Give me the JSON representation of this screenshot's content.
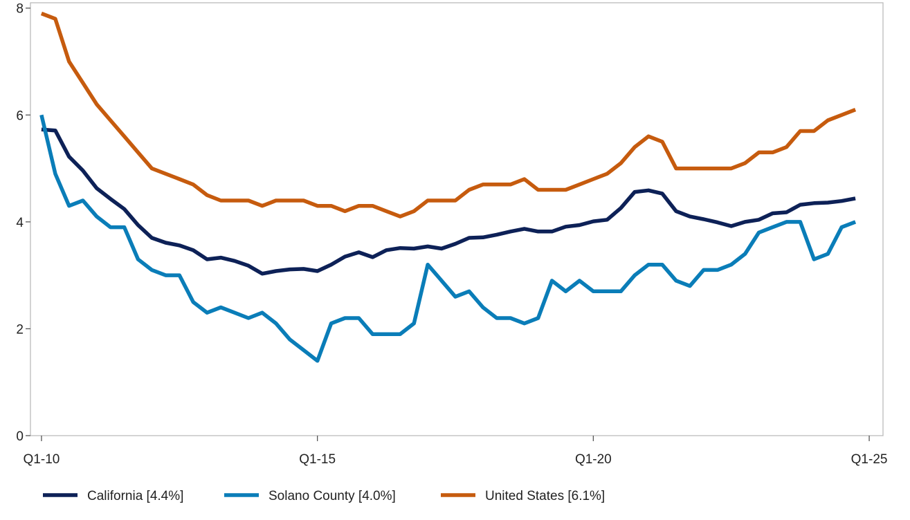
{
  "chart_data": {
    "type": "line",
    "title": "",
    "xlabel": "",
    "ylabel": "",
    "x_tick_labels": [
      "Q1-10",
      "Q1-15",
      "Q1-20",
      "Q1-25"
    ],
    "x_tick_positions": [
      0,
      20,
      40,
      60
    ],
    "y_ticks": [
      0,
      2,
      4,
      6,
      8
    ],
    "ylim": [
      0,
      8.1
    ],
    "xlim": [
      -0.8,
      61
    ],
    "grid": false,
    "legend_position": "bottom",
    "series": [
      {
        "name": "California [4.4%]",
        "color": "#0d2157",
        "values": [
          5.73,
          5.71,
          5.22,
          4.96,
          4.63,
          4.43,
          4.24,
          3.94,
          3.7,
          3.61,
          3.56,
          3.47,
          3.3,
          3.33,
          3.27,
          3.18,
          3.03,
          3.08,
          3.11,
          3.12,
          3.08,
          3.2,
          3.35,
          3.43,
          3.34,
          3.47,
          3.51,
          3.5,
          3.54,
          3.5,
          3.59,
          3.7,
          3.71,
          3.76,
          3.82,
          3.87,
          3.82,
          3.82,
          3.91,
          3.94,
          4.01,
          4.04,
          4.26,
          4.56,
          4.59,
          4.53,
          4.2,
          4.1,
          4.05,
          3.99,
          3.92,
          4.0,
          4.04,
          4.16,
          4.18,
          4.32,
          4.35,
          4.36,
          4.39,
          4.44
        ]
      },
      {
        "name": "Solano County [4.0%]",
        "color": "#0a7db8",
        "values": [
          6.0,
          4.9,
          4.3,
          4.4,
          4.1,
          3.9,
          3.9,
          3.3,
          3.1,
          3.0,
          3.0,
          2.5,
          2.3,
          2.4,
          2.3,
          2.2,
          2.3,
          2.1,
          1.8,
          1.6,
          1.4,
          2.1,
          2.2,
          2.2,
          1.9,
          1.9,
          1.9,
          2.1,
          3.2,
          2.9,
          2.6,
          2.7,
          2.4,
          2.2,
          2.2,
          2.1,
          2.2,
          2.9,
          2.7,
          2.9,
          2.7,
          2.7,
          2.7,
          3.0,
          3.2,
          3.2,
          2.9,
          2.8,
          3.1,
          3.1,
          3.2,
          3.4,
          3.8,
          3.9,
          4.0,
          4.0,
          3.3,
          3.4,
          3.9,
          4.0
        ]
      },
      {
        "name": "United States [6.1%]",
        "color": "#c65b0e",
        "values": [
          7.9,
          7.8,
          7.0,
          6.6,
          6.2,
          5.9,
          5.6,
          5.3,
          5.0,
          4.9,
          4.8,
          4.7,
          4.5,
          4.4,
          4.4,
          4.4,
          4.3,
          4.4,
          4.4,
          4.4,
          4.3,
          4.3,
          4.2,
          4.3,
          4.3,
          4.2,
          4.1,
          4.2,
          4.4,
          4.4,
          4.4,
          4.6,
          4.7,
          4.7,
          4.7,
          4.8,
          4.6,
          4.6,
          4.6,
          4.7,
          4.8,
          4.9,
          5.1,
          5.4,
          5.6,
          5.5,
          5.0,
          5.0,
          5.0,
          5.0,
          5.0,
          5.1,
          5.3,
          5.3,
          5.4,
          5.7,
          5.7,
          5.9,
          6.0,
          6.1
        ]
      }
    ]
  }
}
